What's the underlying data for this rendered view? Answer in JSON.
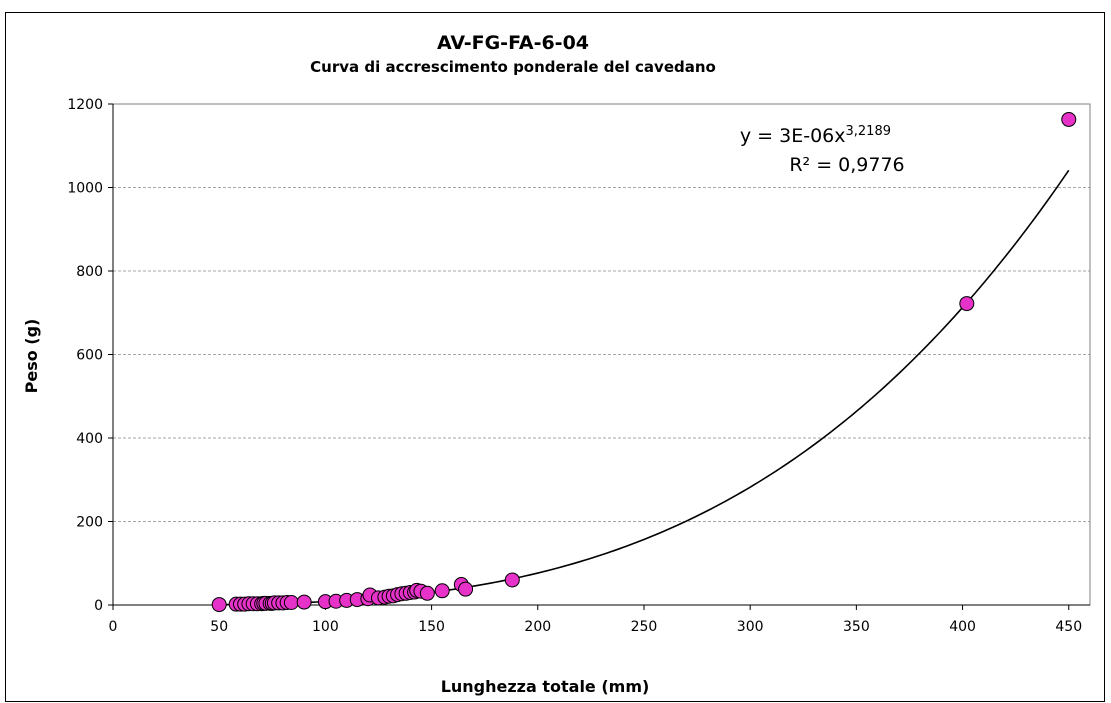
{
  "chart_data": {
    "type": "scatter",
    "title": "AV-FG-FA-6-04",
    "subtitle": "Curva di accrescimento ponderale del cavedano",
    "xlabel": "Lunghezza totale (mm)",
    "ylabel": "Peso (g)",
    "xlim": [
      0,
      460
    ],
    "ylim": [
      0,
      1200
    ],
    "xticks": [
      "0",
      "50",
      "100",
      "150",
      "200",
      "250",
      "300",
      "350",
      "400",
      "450"
    ],
    "yticks": [
      "0",
      "200",
      "400",
      "600",
      "800",
      "1000",
      "1200"
    ],
    "grid": "horizontal",
    "marker_color": "#e632c8",
    "line_color": "#000000",
    "points": [
      [
        50,
        1
      ],
      [
        58,
        2
      ],
      [
        60,
        2
      ],
      [
        62,
        2
      ],
      [
        64,
        3
      ],
      [
        66,
        3
      ],
      [
        68,
        3
      ],
      [
        70,
        3
      ],
      [
        71,
        4
      ],
      [
        72,
        4
      ],
      [
        74,
        4
      ],
      [
        75,
        4
      ],
      [
        76,
        5
      ],
      [
        78,
        5
      ],
      [
        80,
        5
      ],
      [
        82,
        6
      ],
      [
        84,
        6
      ],
      [
        90,
        7
      ],
      [
        100,
        8
      ],
      [
        105,
        9
      ],
      [
        110,
        11
      ],
      [
        115,
        13
      ],
      [
        120,
        15
      ],
      [
        121,
        24
      ],
      [
        125,
        17
      ],
      [
        128,
        19
      ],
      [
        130,
        21
      ],
      [
        132,
        22
      ],
      [
        134,
        25
      ],
      [
        136,
        27
      ],
      [
        138,
        28
      ],
      [
        140,
        30
      ],
      [
        142,
        31
      ],
      [
        143,
        35
      ],
      [
        145,
        33
      ],
      [
        148,
        28
      ],
      [
        155,
        34
      ],
      [
        164,
        49
      ],
      [
        166,
        38
      ],
      [
        188,
        60
      ],
      [
        402,
        722
      ],
      [
        450,
        1163
      ]
    ],
    "trendline": {
      "type": "power",
      "coefficient": 3e-06,
      "exponent": 3.2189,
      "equation_base": "y = 3E-06x",
      "equation_exponent": "3,2189",
      "r_squared": "R² = 0,9776"
    }
  }
}
